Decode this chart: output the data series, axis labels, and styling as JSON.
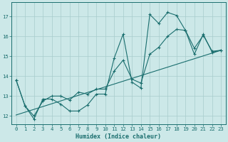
{
  "xlabel": "Humidex (Indice chaleur)",
  "xlim": [
    -0.5,
    23.5
  ],
  "ylim": [
    11.6,
    17.7
  ],
  "xticks": [
    0,
    1,
    2,
    3,
    4,
    5,
    6,
    7,
    8,
    9,
    10,
    11,
    12,
    13,
    14,
    15,
    16,
    17,
    18,
    19,
    20,
    21,
    22,
    23
  ],
  "yticks": [
    12,
    13,
    14,
    15,
    16,
    17
  ],
  "background_color": "#cce8e8",
  "grid_color": "#a8cccc",
  "line_color": "#1a6e6e",
  "line1_x": [
    0,
    1,
    2,
    3,
    4,
    5,
    6,
    7,
    8,
    9,
    10,
    11,
    12,
    13,
    14,
    15,
    16,
    17,
    18,
    19,
    20,
    21,
    22,
    23
  ],
  "line1_y": [
    13.8,
    12.5,
    11.85,
    12.85,
    12.85,
    12.6,
    12.25,
    12.25,
    12.55,
    13.1,
    13.1,
    14.9,
    16.1,
    13.7,
    13.4,
    17.1,
    16.65,
    17.2,
    17.05,
    16.3,
    15.1,
    16.1,
    15.2,
    15.3
  ],
  "line2_x": [
    0,
    1,
    2,
    3,
    4,
    5,
    6,
    7,
    8,
    9,
    10,
    11,
    12,
    13,
    14,
    15,
    16,
    17,
    18,
    19,
    20,
    21,
    22,
    23
  ],
  "line2_y": [
    13.8,
    12.5,
    12.0,
    12.75,
    13.0,
    13.0,
    12.8,
    13.2,
    13.1,
    13.35,
    13.35,
    14.25,
    14.8,
    13.85,
    13.65,
    15.1,
    15.45,
    16.0,
    16.35,
    16.3,
    15.4,
    16.05,
    15.25,
    15.3
  ],
  "line3_x": [
    0,
    23
  ],
  "line3_y": [
    12.05,
    15.3
  ]
}
